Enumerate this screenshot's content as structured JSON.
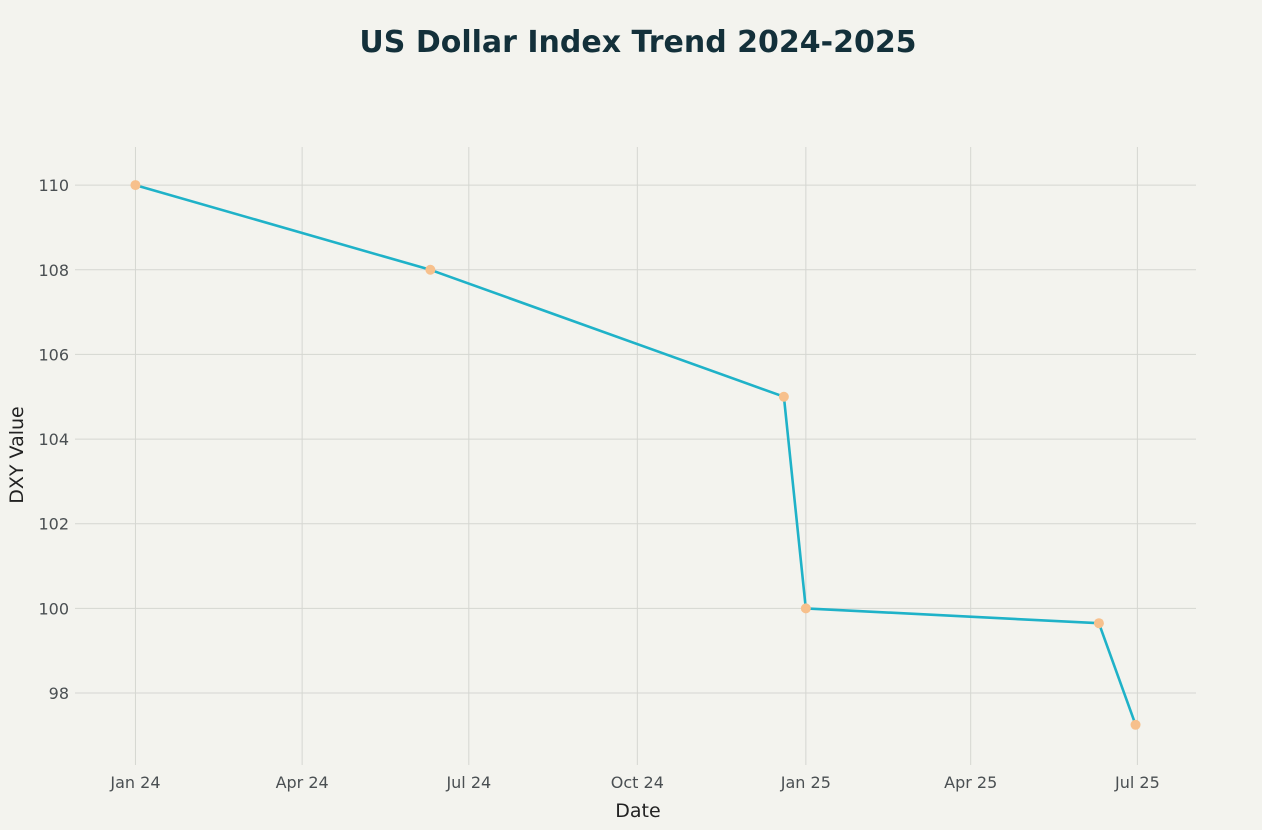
{
  "chart_data": {
    "type": "line",
    "title": "US Dollar Index Trend 2024-2025",
    "xlabel": "Date",
    "ylabel": "DXY Value",
    "x_tick_labels": [
      {
        "date": "2024-01-01",
        "label": "Jan 24"
      },
      {
        "date": "2024-04-01",
        "label": "Apr 24"
      },
      {
        "date": "2024-07-01",
        "label": "Jul 24"
      },
      {
        "date": "2024-10-01",
        "label": "Oct 24"
      },
      {
        "date": "2025-01-01",
        "label": "Jan 25"
      },
      {
        "date": "2025-04-01",
        "label": "Apr 25"
      },
      {
        "date": "2025-07-01",
        "label": "Jul 25"
      }
    ],
    "y_ticks": [
      98,
      100,
      102,
      104,
      106,
      108,
      110
    ],
    "xlim": [
      "2023-11-29",
      "2025-08-02"
    ],
    "ylim": [
      96.3,
      110.9
    ],
    "grid": true,
    "series": [
      {
        "color": "#1fb2c8",
        "marker_color": "#f7c08c",
        "points": [
          {
            "x": "2024-01-01",
            "y": 110.0
          },
          {
            "x": "2024-06-10",
            "y": 108.0
          },
          {
            "x": "2024-12-20",
            "y": 105.0
          },
          {
            "x": "2025-01-01",
            "y": 100.0
          },
          {
            "x": "2025-06-10",
            "y": 99.65
          },
          {
            "x": "2025-06-30",
            "y": 97.25
          }
        ]
      }
    ]
  }
}
